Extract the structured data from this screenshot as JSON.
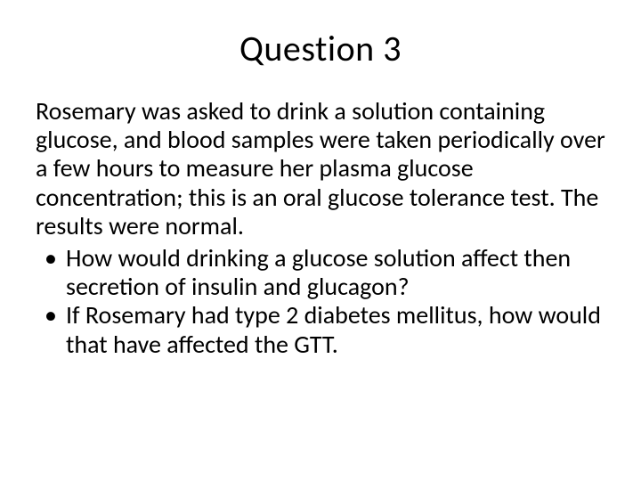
{
  "slide": {
    "title": "Question 3",
    "intro": "Rosemary was asked to drink a solution containing glucose, and blood samples were taken periodically over a few hours to measure her plasma glucose concentration; this is an oral glucose tolerance test. The results were normal.",
    "bullets": [
      "How would drinking a glucose solution affect then secretion of insulin and glucagon?",
      "If Rosemary had type 2 diabetes mellitus, how would that have affected the GTT."
    ]
  },
  "style": {
    "background_color": "#ffffff",
    "text_color": "#000000",
    "title_fontsize": 40,
    "body_fontsize": 28,
    "font_family": "Calibri"
  }
}
